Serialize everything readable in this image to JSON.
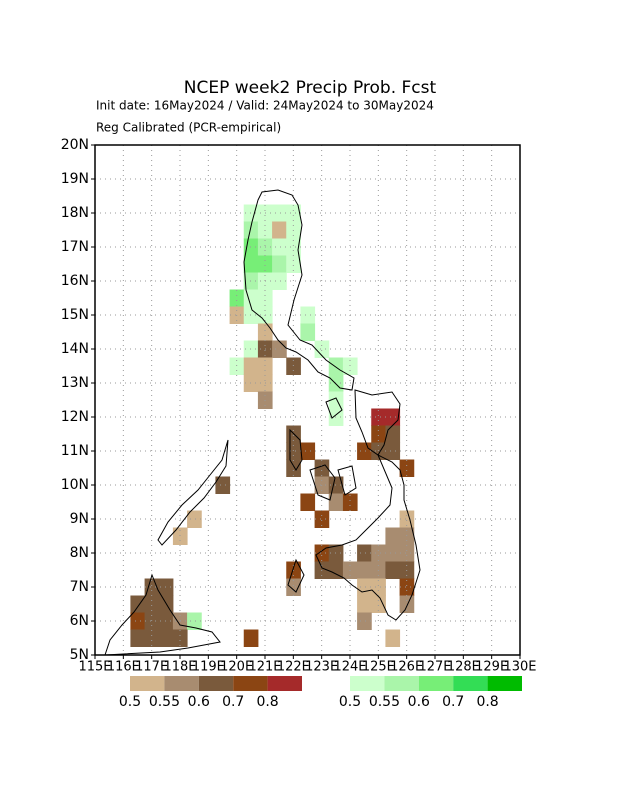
{
  "chart_data": {
    "type": "gridmap",
    "title": "NCEP week2 Precip Prob. Fcst",
    "subtitle": [
      "Init date: 16May2024 / Valid: 24May2024 to 30May2024",
      "Reg Calibrated (PCR-empirical)"
    ],
    "xlim": [
      115,
      130
    ],
    "ylim": [
      5,
      20
    ],
    "xticks": [
      {
        "value": 115,
        "label": "115E"
      },
      {
        "value": 116,
        "label": "116E"
      },
      {
        "value": 117,
        "label": "117E"
      },
      {
        "value": 118,
        "label": "118E"
      },
      {
        "value": 119,
        "label": "119E"
      },
      {
        "value": 120,
        "label": "120E"
      },
      {
        "value": 121,
        "label": "121E"
      },
      {
        "value": 122,
        "label": "122E"
      },
      {
        "value": 123,
        "label": "123E"
      },
      {
        "value": 124,
        "label": "124E"
      },
      {
        "value": 125,
        "label": "125E"
      },
      {
        "value": 126,
        "label": "126E"
      },
      {
        "value": 127,
        "label": "127E"
      },
      {
        "value": 128,
        "label": "128E"
      },
      {
        "value": 129,
        "label": "129E"
      },
      {
        "value": 130,
        "label": "130E"
      }
    ],
    "yticks": [
      {
        "value": 5,
        "label": "5N"
      },
      {
        "value": 6,
        "label": "6N"
      },
      {
        "value": 7,
        "label": "7N"
      },
      {
        "value": 8,
        "label": "8N"
      },
      {
        "value": 9,
        "label": "9N"
      },
      {
        "value": 10,
        "label": "10N"
      },
      {
        "value": 11,
        "label": "11N"
      },
      {
        "value": 12,
        "label": "12N"
      },
      {
        "value": 13,
        "label": "13N"
      },
      {
        "value": 14,
        "label": "14N"
      },
      {
        "value": 15,
        "label": "15N"
      },
      {
        "value": 16,
        "label": "16N"
      },
      {
        "value": 17,
        "label": "17N"
      },
      {
        "value": 18,
        "label": "18N"
      },
      {
        "value": 19,
        "label": "19N"
      },
      {
        "value": 20,
        "label": "20N"
      }
    ],
    "grid": true,
    "legend": {
      "dry": {
        "levels": [
          0.5,
          0.55,
          0.6,
          0.7,
          0.8
        ],
        "colors": [
          "#d2b48c",
          "#a88c70",
          "#7a5a3c",
          "#8b4513",
          "#a52a2a"
        ]
      },
      "wet": {
        "levels": [
          0.5,
          0.55,
          0.6,
          0.7,
          0.8
        ],
        "colors": [
          "#ccffcc",
          "#aaf5aa",
          "#77ee77",
          "#33dd55",
          "#00bb00"
        ]
      }
    },
    "cells": [
      {
        "lon": 120.25,
        "lat": 17.75,
        "value": 0.5,
        "kind": "wet"
      },
      {
        "lon": 120.75,
        "lat": 17.75,
        "value": 0.5,
        "kind": "wet"
      },
      {
        "lon": 121.25,
        "lat": 17.75,
        "value": 0.5,
        "kind": "wet"
      },
      {
        "lon": 121.75,
        "lat": 17.75,
        "value": 0.5,
        "kind": "wet"
      },
      {
        "lon": 120.25,
        "lat": 17.25,
        "value": 0.55,
        "kind": "wet"
      },
      {
        "lon": 120.75,
        "lat": 17.25,
        "value": 0.5,
        "kind": "wet"
      },
      {
        "lon": 121.25,
        "lat": 17.25,
        "value": 0.5,
        "kind": "dry"
      },
      {
        "lon": 121.75,
        "lat": 17.25,
        "value": 0.5,
        "kind": "wet"
      },
      {
        "lon": 120.25,
        "lat": 16.75,
        "value": 0.6,
        "kind": "wet"
      },
      {
        "lon": 120.75,
        "lat": 16.75,
        "value": 0.55,
        "kind": "wet"
      },
      {
        "lon": 121.25,
        "lat": 16.75,
        "value": 0.5,
        "kind": "wet"
      },
      {
        "lon": 121.75,
        "lat": 16.75,
        "value": 0.5,
        "kind": "wet"
      },
      {
        "lon": 120.25,
        "lat": 16.25,
        "value": 0.6,
        "kind": "wet"
      },
      {
        "lon": 120.75,
        "lat": 16.25,
        "value": 0.6,
        "kind": "wet"
      },
      {
        "lon": 121.25,
        "lat": 16.25,
        "value": 0.55,
        "kind": "wet"
      },
      {
        "lon": 121.75,
        "lat": 16.25,
        "value": 0.5,
        "kind": "wet"
      },
      {
        "lon": 120.25,
        "lat": 15.75,
        "value": 0.55,
        "kind": "wet"
      },
      {
        "lon": 120.75,
        "lat": 15.75,
        "value": 0.5,
        "kind": "wet"
      },
      {
        "lon": 121.25,
        "lat": 15.75,
        "value": 0.5,
        "kind": "wet"
      },
      {
        "lon": 119.75,
        "lat": 15.25,
        "value": 0.6,
        "kind": "wet"
      },
      {
        "lon": 120.25,
        "lat": 15.25,
        "value": 0.5,
        "kind": "wet"
      },
      {
        "lon": 120.75,
        "lat": 15.25,
        "value": 0.5,
        "kind": "wet"
      },
      {
        "lon": 119.75,
        "lat": 14.75,
        "value": 0.5,
        "kind": "dry"
      },
      {
        "lon": 120.25,
        "lat": 14.75,
        "value": 0.5,
        "kind": "wet"
      },
      {
        "lon": 120.75,
        "lat": 14.75,
        "value": 0.5,
        "kind": "wet"
      },
      {
        "lon": 122.25,
        "lat": 14.75,
        "value": 0.5,
        "kind": "wet"
      },
      {
        "lon": 120.75,
        "lat": 14.25,
        "value": 0.5,
        "kind": "dry"
      },
      {
        "lon": 122.25,
        "lat": 14.25,
        "value": 0.55,
        "kind": "wet"
      },
      {
        "lon": 120.25,
        "lat": 13.75,
        "value": 0.5,
        "kind": "wet"
      },
      {
        "lon": 120.75,
        "lat": 13.75,
        "value": 0.6,
        "kind": "dry"
      },
      {
        "lon": 121.25,
        "lat": 13.75,
        "value": 0.55,
        "kind": "dry"
      },
      {
        "lon": 122.75,
        "lat": 13.75,
        "value": 0.5,
        "kind": "wet"
      },
      {
        "lon": 119.75,
        "lat": 13.25,
        "value": 0.5,
        "kind": "wet"
      },
      {
        "lon": 120.25,
        "lat": 13.25,
        "value": 0.5,
        "kind": "dry"
      },
      {
        "lon": 120.75,
        "lat": 13.25,
        "value": 0.5,
        "kind": "dry"
      },
      {
        "lon": 121.75,
        "lat": 13.25,
        "value": 0.6,
        "kind": "dry"
      },
      {
        "lon": 123.25,
        "lat": 13.25,
        "value": 0.55,
        "kind": "wet"
      },
      {
        "lon": 123.75,
        "lat": 13.25,
        "value": 0.5,
        "kind": "wet"
      },
      {
        "lon": 120.25,
        "lat": 12.75,
        "value": 0.5,
        "kind": "dry"
      },
      {
        "lon": 120.75,
        "lat": 12.75,
        "value": 0.5,
        "kind": "dry"
      },
      {
        "lon": 123.25,
        "lat": 12.75,
        "value": 0.55,
        "kind": "wet"
      },
      {
        "lon": 120.75,
        "lat": 12.25,
        "value": 0.55,
        "kind": "dry"
      },
      {
        "lon": 123.25,
        "lat": 12.25,
        "value": 0.5,
        "kind": "wet"
      },
      {
        "lon": 123.25,
        "lat": 11.75,
        "value": 0.5,
        "kind": "wet"
      },
      {
        "lon": 124.75,
        "lat": 11.75,
        "value": 0.8,
        "kind": "dry"
      },
      {
        "lon": 125.25,
        "lat": 11.75,
        "value": 0.8,
        "kind": "dry"
      },
      {
        "lon": 121.75,
        "lat": 11.25,
        "value": 0.6,
        "kind": "dry"
      },
      {
        "lon": 124.75,
        "lat": 11.25,
        "value": 0.7,
        "kind": "dry"
      },
      {
        "lon": 125.25,
        "lat": 11.25,
        "value": 0.6,
        "kind": "dry"
      },
      {
        "lon": 121.75,
        "lat": 10.75,
        "value": 0.6,
        "kind": "dry"
      },
      {
        "lon": 122.25,
        "lat": 10.75,
        "value": 0.7,
        "kind": "dry"
      },
      {
        "lon": 124.25,
        "lat": 10.75,
        "value": 0.7,
        "kind": "dry"
      },
      {
        "lon": 124.75,
        "lat": 10.75,
        "value": 0.6,
        "kind": "dry"
      },
      {
        "lon": 125.25,
        "lat": 10.75,
        "value": 0.6,
        "kind": "dry"
      },
      {
        "lon": 121.75,
        "lat": 10.25,
        "value": 0.6,
        "kind": "dry"
      },
      {
        "lon": 122.75,
        "lat": 10.25,
        "value": 0.6,
        "kind": "dry"
      },
      {
        "lon": 125.75,
        "lat": 10.25,
        "value": 0.7,
        "kind": "dry"
      },
      {
        "lon": 119.25,
        "lat": 9.75,
        "value": 0.6,
        "kind": "dry"
      },
      {
        "lon": 122.75,
        "lat": 9.75,
        "value": 0.55,
        "kind": "dry"
      },
      {
        "lon": 123.25,
        "lat": 9.75,
        "value": 0.6,
        "kind": "dry"
      },
      {
        "lon": 122.25,
        "lat": 9.25,
        "value": 0.7,
        "kind": "dry"
      },
      {
        "lon": 123.25,
        "lat": 9.25,
        "value": 0.55,
        "kind": "dry"
      },
      {
        "lon": 123.75,
        "lat": 9.25,
        "value": 0.7,
        "kind": "dry"
      },
      {
        "lon": 118.25,
        "lat": 8.75,
        "value": 0.5,
        "kind": "dry"
      },
      {
        "lon": 122.75,
        "lat": 8.75,
        "value": 0.7,
        "kind": "dry"
      },
      {
        "lon": 125.75,
        "lat": 8.75,
        "value": 0.5,
        "kind": "dry"
      },
      {
        "lon": 117.75,
        "lat": 8.25,
        "value": 0.5,
        "kind": "dry"
      },
      {
        "lon": 125.25,
        "lat": 8.25,
        "value": 0.55,
        "kind": "dry"
      },
      {
        "lon": 125.75,
        "lat": 8.25,
        "value": 0.55,
        "kind": "dry"
      },
      {
        "lon": 122.75,
        "lat": 7.75,
        "value": 0.7,
        "kind": "dry"
      },
      {
        "lon": 123.25,
        "lat": 7.75,
        "value": 0.6,
        "kind": "dry"
      },
      {
        "lon": 124.25,
        "lat": 7.75,
        "value": 0.6,
        "kind": "dry"
      },
      {
        "lon": 124.75,
        "lat": 7.75,
        "value": 0.55,
        "kind": "dry"
      },
      {
        "lon": 125.25,
        "lat": 7.75,
        "value": 0.55,
        "kind": "dry"
      },
      {
        "lon": 125.75,
        "lat": 7.75,
        "value": 0.55,
        "kind": "dry"
      },
      {
        "lon": 121.75,
        "lat": 7.25,
        "value": 0.7,
        "kind": "dry"
      },
      {
        "lon": 122.75,
        "lat": 7.25,
        "value": 0.6,
        "kind": "dry"
      },
      {
        "lon": 123.25,
        "lat": 7.25,
        "value": 0.6,
        "kind": "dry"
      },
      {
        "lon": 123.75,
        "lat": 7.25,
        "value": 0.55,
        "kind": "dry"
      },
      {
        "lon": 124.25,
        "lat": 7.25,
        "value": 0.55,
        "kind": "dry"
      },
      {
        "lon": 124.75,
        "lat": 7.25,
        "value": 0.55,
        "kind": "dry"
      },
      {
        "lon": 125.25,
        "lat": 7.25,
        "value": 0.6,
        "kind": "dry"
      },
      {
        "lon": 125.75,
        "lat": 7.25,
        "value": 0.6,
        "kind": "dry"
      },
      {
        "lon": 116.75,
        "lat": 6.75,
        "value": 0.6,
        "kind": "dry"
      },
      {
        "lon": 117.25,
        "lat": 6.75,
        "value": 0.6,
        "kind": "dry"
      },
      {
        "lon": 121.75,
        "lat": 6.75,
        "value": 0.55,
        "kind": "dry"
      },
      {
        "lon": 124.25,
        "lat": 6.75,
        "value": 0.5,
        "kind": "dry"
      },
      {
        "lon": 124.75,
        "lat": 6.75,
        "value": 0.5,
        "kind": "dry"
      },
      {
        "lon": 125.75,
        "lat": 6.75,
        "value": 0.7,
        "kind": "dry"
      },
      {
        "lon": 116.25,
        "lat": 6.25,
        "value": 0.6,
        "kind": "dry"
      },
      {
        "lon": 116.75,
        "lat": 6.25,
        "value": 0.6,
        "kind": "dry"
      },
      {
        "lon": 117.25,
        "lat": 6.25,
        "value": 0.6,
        "kind": "dry"
      },
      {
        "lon": 124.25,
        "lat": 6.25,
        "value": 0.5,
        "kind": "dry"
      },
      {
        "lon": 124.75,
        "lat": 6.25,
        "value": 0.5,
        "kind": "dry"
      },
      {
        "lon": 125.75,
        "lat": 6.25,
        "value": 0.55,
        "kind": "dry"
      },
      {
        "lon": 116.25,
        "lat": 5.75,
        "value": 0.7,
        "kind": "dry"
      },
      {
        "lon": 116.75,
        "lat": 5.75,
        "value": 0.6,
        "kind": "dry"
      },
      {
        "lon": 117.25,
        "lat": 5.75,
        "value": 0.6,
        "kind": "dry"
      },
      {
        "lon": 117.75,
        "lat": 5.75,
        "value": 0.55,
        "kind": "dry"
      },
      {
        "lon": 118.25,
        "lat": 5.75,
        "value": 0.55,
        "kind": "wet"
      },
      {
        "lon": 124.25,
        "lat": 5.75,
        "value": 0.55,
        "kind": "dry"
      },
      {
        "lon": 116.25,
        "lat": 5.25,
        "value": 0.6,
        "kind": "dry"
      },
      {
        "lon": 116.75,
        "lat": 5.25,
        "value": 0.6,
        "kind": "dry"
      },
      {
        "lon": 117.25,
        "lat": 5.25,
        "value": 0.6,
        "kind": "dry"
      },
      {
        "lon": 117.75,
        "lat": 5.25,
        "value": 0.6,
        "kind": "dry"
      },
      {
        "lon": 120.25,
        "lat": 5.25,
        "value": 0.7,
        "kind": "dry"
      },
      {
        "lon": 125.25,
        "lat": 5.25,
        "value": 0.5,
        "kind": "dry"
      }
    ]
  }
}
